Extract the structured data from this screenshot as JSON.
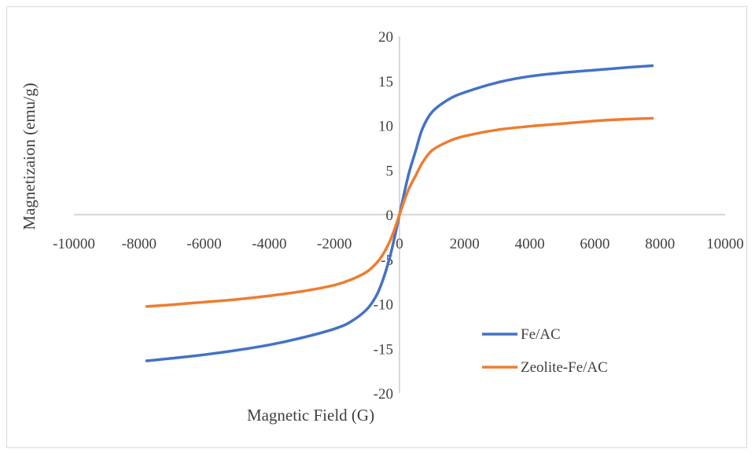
{
  "chart_data": {
    "type": "line",
    "title": "",
    "xlabel": "Magnetic Field (G)",
    "ylabel": "Magnetizaion (emu/g)",
    "xlim": [
      -10000,
      10000
    ],
    "ylim": [
      -20,
      20
    ],
    "x_ticks": [
      "-10000",
      "-8000",
      "-6000",
      "-4000",
      "-2000",
      "0",
      "2000",
      "4000",
      "6000",
      "8000",
      "10000"
    ],
    "y_ticks": [
      "20",
      "15",
      "10",
      "5",
      "0",
      "-5",
      "-10",
      "-15",
      "-20"
    ],
    "grid": false,
    "legend_position": "bottom-right",
    "series": [
      {
        "name": "Fe/AC",
        "color": "#4472C4",
        "x": [
          -7800,
          -7000,
          -6000,
          -5000,
          -4000,
          -3000,
          -2000,
          -1500,
          -1000,
          -700,
          -500,
          -300,
          -150,
          0,
          150,
          300,
          500,
          700,
          1000,
          1500,
          2000,
          3000,
          4000,
          5000,
          6000,
          7000,
          7800
        ],
        "y": [
          -16.4,
          -16.1,
          -15.7,
          -15.2,
          -14.6,
          -13.8,
          -12.8,
          -12.0,
          -10.6,
          -9.0,
          -7.2,
          -4.8,
          -2.5,
          0,
          2.5,
          4.8,
          7.2,
          9.6,
          11.5,
          12.9,
          13.7,
          14.8,
          15.5,
          15.9,
          16.2,
          16.5,
          16.7
        ]
      },
      {
        "name": "Zeolite-Fe/AC",
        "color": "#ED7D31",
        "x": [
          -7800,
          -7000,
          -6000,
          -5000,
          -4000,
          -3000,
          -2000,
          -1500,
          -1000,
          -700,
          -500,
          -300,
          -150,
          0,
          150,
          300,
          500,
          700,
          1000,
          1500,
          2000,
          3000,
          4000,
          5000,
          6000,
          7000,
          7800
        ],
        "y": [
          -10.3,
          -10.1,
          -9.8,
          -9.5,
          -9.1,
          -8.6,
          -7.9,
          -7.3,
          -6.4,
          -5.4,
          -4.4,
          -3.0,
          -1.6,
          0,
          1.6,
          3.0,
          4.4,
          5.8,
          7.2,
          8.2,
          8.8,
          9.5,
          9.9,
          10.2,
          10.5,
          10.7,
          10.8
        ]
      }
    ]
  }
}
